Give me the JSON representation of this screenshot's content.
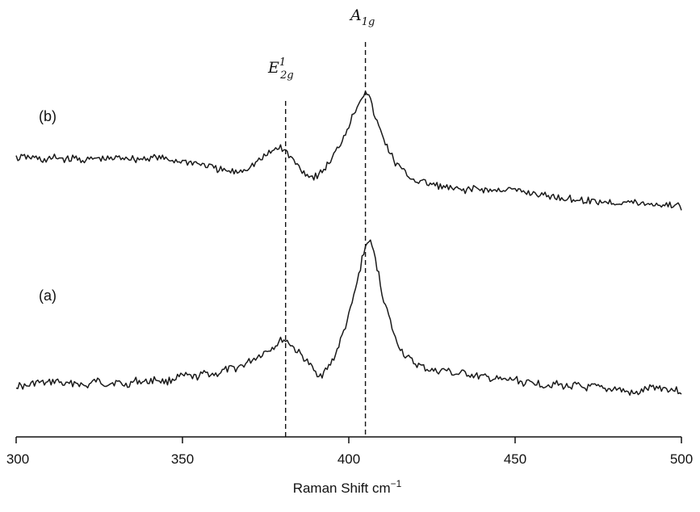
{
  "chart_data": {
    "type": "line",
    "title": "",
    "xlabel": "Raman Shift cm",
    "xlabel_sup": "−1",
    "ylabel": "",
    "xlim": [
      300,
      500
    ],
    "xticks": [
      300,
      350,
      400,
      450,
      500
    ],
    "grid": false,
    "yaxis_shown": false,
    "y_units": "arbitrary (relative intensity, offset per spectrum)",
    "series": [
      {
        "name": "(a)",
        "color": "#1a1a1a",
        "points": [
          [
            300,
            0.1
          ],
          [
            303,
            0.09
          ],
          [
            306,
            0.12
          ],
          [
            309,
            0.11
          ],
          [
            312,
            0.13
          ],
          [
            315,
            0.1
          ],
          [
            318,
            0.12
          ],
          [
            321,
            0.09
          ],
          [
            324,
            0.13
          ],
          [
            327,
            0.11
          ],
          [
            330,
            0.12
          ],
          [
            333,
            0.1
          ],
          [
            336,
            0.13
          ],
          [
            339,
            0.12
          ],
          [
            342,
            0.14
          ],
          [
            345,
            0.12
          ],
          [
            348,
            0.15
          ],
          [
            351,
            0.16
          ],
          [
            354,
            0.15
          ],
          [
            357,
            0.18
          ],
          [
            360,
            0.17
          ],
          [
            363,
            0.2
          ],
          [
            366,
            0.21
          ],
          [
            369,
            0.24
          ],
          [
            372,
            0.28
          ],
          [
            375,
            0.32
          ],
          [
            378,
            0.36
          ],
          [
            380,
            0.4
          ],
          [
            382,
            0.38
          ],
          [
            384,
            0.33
          ],
          [
            386,
            0.29
          ],
          [
            388,
            0.24
          ],
          [
            390,
            0.18
          ],
          [
            392,
            0.17
          ],
          [
            394,
            0.22
          ],
          [
            396,
            0.3
          ],
          [
            398,
            0.42
          ],
          [
            400,
            0.55
          ],
          [
            402,
            0.72
          ],
          [
            404,
            0.92
          ],
          [
            405,
            1.0
          ],
          [
            406,
            1.05
          ],
          [
            407,
            1.0
          ],
          [
            408,
            0.92
          ],
          [
            409,
            0.82
          ],
          [
            410,
            0.7
          ],
          [
            412,
            0.55
          ],
          [
            414,
            0.4
          ],
          [
            417,
            0.29
          ],
          [
            420,
            0.24
          ],
          [
            423,
            0.21
          ],
          [
            426,
            0.19
          ],
          [
            429,
            0.2
          ],
          [
            432,
            0.17
          ],
          [
            435,
            0.18
          ],
          [
            438,
            0.16
          ],
          [
            441,
            0.15
          ],
          [
            444,
            0.14
          ],
          [
            447,
            0.13
          ],
          [
            450,
            0.14
          ],
          [
            453,
            0.11
          ],
          [
            456,
            0.12
          ],
          [
            459,
            0.1
          ],
          [
            462,
            0.11
          ],
          [
            465,
            0.09
          ],
          [
            468,
            0.1
          ],
          [
            471,
            0.08
          ],
          [
            474,
            0.09
          ],
          [
            477,
            0.07
          ],
          [
            480,
            0.08
          ],
          [
            483,
            0.06
          ],
          [
            486,
            0.04
          ],
          [
            489,
            0.07
          ],
          [
            492,
            0.09
          ],
          [
            495,
            0.08
          ],
          [
            498,
            0.07
          ],
          [
            500,
            0.06
          ]
        ]
      },
      {
        "name": "(b)",
        "color": "#1a1a1a",
        "points": [
          [
            300,
            0.6
          ],
          [
            303,
            0.61
          ],
          [
            306,
            0.6
          ],
          [
            309,
            0.58
          ],
          [
            312,
            0.61
          ],
          [
            315,
            0.59
          ],
          [
            318,
            0.6
          ],
          [
            321,
            0.58
          ],
          [
            324,
            0.6
          ],
          [
            327,
            0.59
          ],
          [
            330,
            0.6
          ],
          [
            333,
            0.61
          ],
          [
            336,
            0.59
          ],
          [
            339,
            0.6
          ],
          [
            342,
            0.61
          ],
          [
            345,
            0.59
          ],
          [
            348,
            0.58
          ],
          [
            351,
            0.57
          ],
          [
            354,
            0.56
          ],
          [
            357,
            0.54
          ],
          [
            360,
            0.51
          ],
          [
            363,
            0.49
          ],
          [
            366,
            0.48
          ],
          [
            369,
            0.51
          ],
          [
            372,
            0.56
          ],
          [
            375,
            0.62
          ],
          [
            378,
            0.68
          ],
          [
            379,
            0.7
          ],
          [
            381,
            0.66
          ],
          [
            383,
            0.59
          ],
          [
            385,
            0.53
          ],
          [
            387,
            0.47
          ],
          [
            389,
            0.44
          ],
          [
            391,
            0.46
          ],
          [
            393,
            0.52
          ],
          [
            395,
            0.6
          ],
          [
            397,
            0.7
          ],
          [
            399,
            0.82
          ],
          [
            401,
            0.95
          ],
          [
            403,
            1.08
          ],
          [
            405,
            1.18
          ],
          [
            406,
            1.14
          ],
          [
            407,
            1.04
          ],
          [
            408,
            0.94
          ],
          [
            410,
            0.8
          ],
          [
            412,
            0.67
          ],
          [
            414,
            0.56
          ],
          [
            417,
            0.47
          ],
          [
            420,
            0.41
          ],
          [
            423,
            0.39
          ],
          [
            426,
            0.37
          ],
          [
            429,
            0.35
          ],
          [
            432,
            0.33
          ],
          [
            435,
            0.33
          ],
          [
            438,
            0.34
          ],
          [
            441,
            0.33
          ],
          [
            444,
            0.32
          ],
          [
            447,
            0.34
          ],
          [
            450,
            0.32
          ],
          [
            453,
            0.31
          ],
          [
            456,
            0.3
          ],
          [
            459,
            0.28
          ],
          [
            462,
            0.27
          ],
          [
            465,
            0.26
          ],
          [
            468,
            0.25
          ],
          [
            471,
            0.24
          ],
          [
            474,
            0.23
          ],
          [
            477,
            0.23
          ],
          [
            480,
            0.22
          ],
          [
            483,
            0.23
          ],
          [
            486,
            0.22
          ],
          [
            489,
            0.21
          ],
          [
            492,
            0.21
          ],
          [
            495,
            0.2
          ],
          [
            498,
            0.2
          ],
          [
            500,
            0.18
          ]
        ]
      }
    ],
    "annotations": [
      {
        "kind": "vline",
        "x": 381,
        "label_main": "E",
        "label_sub": "2g",
        "label_sup": "1"
      },
      {
        "kind": "vline",
        "x": 405,
        "label_main": "A",
        "label_sub": "1g",
        "label_sup": ""
      }
    ],
    "series_labels": [
      "(a)",
      "(b)"
    ]
  }
}
